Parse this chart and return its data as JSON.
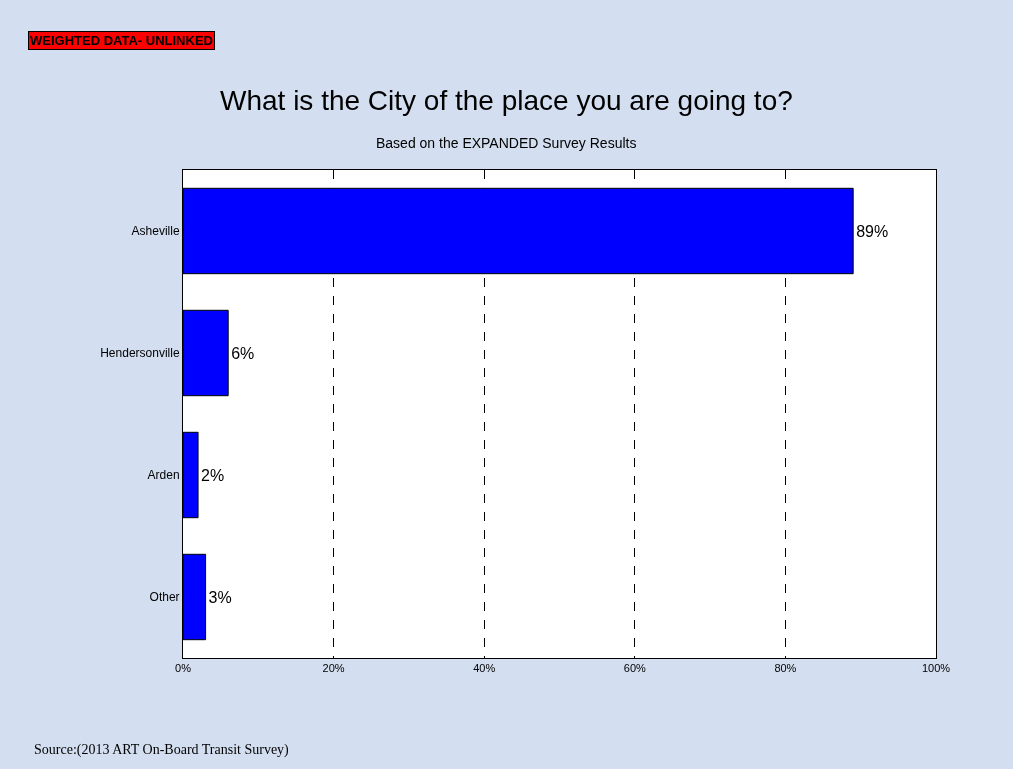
{
  "chart_data": {
    "type": "bar",
    "orientation": "horizontal",
    "title": "What is the City of the place you are going to?",
    "subtitle": "Based on the EXPANDED Survey Results",
    "categories": [
      "Asheville",
      "Hendersonville",
      "Arden",
      "Other"
    ],
    "values": [
      89,
      6,
      2,
      3
    ],
    "value_labels": [
      "89%",
      "6%",
      "2%",
      "3%"
    ],
    "color": "#0000ff",
    "xlim": [
      0,
      100
    ],
    "xticks": [
      {
        "value": 0,
        "label": "0%"
      },
      {
        "value": 20,
        "label": "20%"
      },
      {
        "value": 40,
        "label": "40%"
      },
      {
        "value": 60,
        "label": "60%"
      },
      {
        "value": 80,
        "label": "80%"
      },
      {
        "value": 100,
        "label": "100%"
      }
    ],
    "grid": "x",
    "legend": false,
    "annotations": [
      "WEIGHTED DATA- UNLINKED",
      "Source:(2013 ART On-Board Transit Survey)"
    ]
  }
}
